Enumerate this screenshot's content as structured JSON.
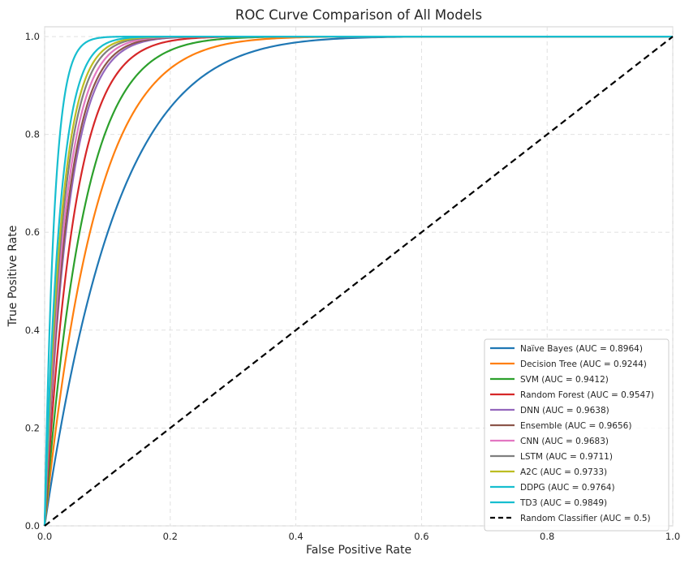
{
  "chart_data": {
    "type": "line",
    "title": "ROC Curve Comparison of All Models",
    "xlabel": "False Positive Rate",
    "ylabel": "True Positive Rate",
    "xlim": [
      0,
      1
    ],
    "ylim": [
      0,
      1.02
    ],
    "xticks": [
      "0.0",
      "0.2",
      "0.4",
      "0.6",
      "0.8",
      "1.0"
    ],
    "xtick_values": [
      0,
      0.2,
      0.4,
      0.6,
      0.8,
      1.0
    ],
    "yticks": [
      "0.0",
      "0.2",
      "0.4",
      "0.6",
      "0.8",
      "1.0"
    ],
    "ytick_values": [
      0,
      0.2,
      0.4,
      0.6,
      0.8,
      1.0
    ],
    "grid": true,
    "legend_position": "lower-right",
    "series": [
      {
        "name": "Naïve Bayes (AUC = 0.8964)",
        "auc": 0.8964,
        "color": "#1f77b4",
        "dash": "solid"
      },
      {
        "name": "Decision Tree (AUC = 0.9244)",
        "auc": 0.9244,
        "color": "#ff7f0e",
        "dash": "solid"
      },
      {
        "name": "SVM (AUC = 0.9412)",
        "auc": 0.9412,
        "color": "#2ca02c",
        "dash": "solid"
      },
      {
        "name": "Random Forest (AUC = 0.9547)",
        "auc": 0.9547,
        "color": "#d62728",
        "dash": "solid"
      },
      {
        "name": "DNN (AUC = 0.9638)",
        "auc": 0.9638,
        "color": "#9467bd",
        "dash": "solid"
      },
      {
        "name": "Ensemble (AUC = 0.9656)",
        "auc": 0.9656,
        "color": "#8c564b",
        "dash": "solid"
      },
      {
        "name": "CNN (AUC = 0.9683)",
        "auc": 0.9683,
        "color": "#e377c2",
        "dash": "solid"
      },
      {
        "name": "LSTM (AUC = 0.9711)",
        "auc": 0.9711,
        "color": "#7f7f7f",
        "dash": "solid"
      },
      {
        "name": "A2C (AUC = 0.9733)",
        "auc": 0.9733,
        "color": "#bcbd22",
        "dash": "solid"
      },
      {
        "name": "DDPG (AUC = 0.9764)",
        "auc": 0.9764,
        "color": "#17becf",
        "dash": "solid"
      },
      {
        "name": "TD3 (AUC = 0.9849)",
        "auc": 0.9849,
        "color": "#17becf",
        "dash": "solid"
      },
      {
        "name": "Random Classifier (AUC = 0.5)",
        "auc": 0.5,
        "color": "#000000",
        "dash": "dashed"
      }
    ]
  }
}
